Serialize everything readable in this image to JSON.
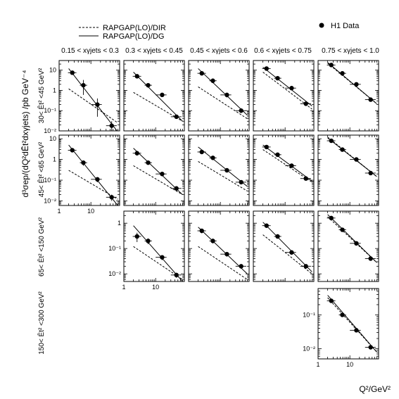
{
  "legend": {
    "lo_dir": "RAPGAP(LO)/DIR",
    "lo_dg": "RAPGAP(LO)/DG",
    "data": "H1 Data"
  },
  "y_title": "d³σep/(dQ²dĒt²dxγjets)  /pb GeV⁻⁴",
  "x_title": "Q²/GeV²",
  "columns": [
    "0.15 < xγjets < 0.3",
    "0.3 < xγjets < 0.45",
    "0.45 < xγjets < 0.6",
    "0.6 < xγjets < 0.75",
    "0.75 < xγjets < 1.0"
  ],
  "rows": [
    "30< Ēt² <45 GeV²",
    "45< Ēt² <65 GeV²",
    "65< Ēt² <150 GeV²",
    "150< Ēt² <300 GeV²"
  ],
  "chart_data": {
    "type": "scatter",
    "x_scale": "log",
    "y_scale": "log",
    "xlabel": "Q²/GeV²",
    "ylabel": "d³σep/(dQ²dĒt²dxγjets) /pb GeV⁻⁴",
    "series_names": [
      "H1 Data",
      "RAPGAP(LO)/DG",
      "RAPGAP(LO)/DIR"
    ],
    "panels": [
      {
        "row": 0,
        "col": 0,
        "ylim": [
          0.01,
          30
        ],
        "yticks": [
          {
            "v": 10,
            "l": "10"
          },
          {
            "v": 1,
            "l": "1"
          },
          {
            "v": 0.1,
            "l": "10⁻¹"
          },
          {
            "v": 0.01,
            "l": "10⁻²"
          }
        ],
        "xticks": [],
        "points": [
          {
            "x": 2.6,
            "y": 7.5,
            "xlo": 1.9,
            "xhi": 3.5,
            "ylo": 6,
            "yhi": 9
          },
          {
            "x": 5.8,
            "y": 1.8,
            "xlo": 4.5,
            "xhi": 7.6,
            "ylo": 0.6,
            "yhi": 3.3
          },
          {
            "x": 16,
            "y": 0.2,
            "xlo": 10,
            "xhi": 22,
            "ylo": 0.05,
            "yhi": 0.4
          },
          {
            "x": 45,
            "y": 0.018,
            "xlo": 30,
            "xhi": 65,
            "ylo": 0.009,
            "yhi": 0.03
          }
        ],
        "dg": [
          [
            2,
            12
          ],
          [
            70,
            0.009
          ]
        ],
        "dir": [
          [
            2,
            1.2
          ],
          [
            70,
            0.025
          ]
        ]
      },
      {
        "row": 0,
        "col": 1,
        "ylim": [
          0.01,
          30
        ],
        "yticks": [],
        "xticks": [],
        "points": [
          {
            "x": 2.6,
            "y": 5,
            "xlo": 1.9,
            "xhi": 3.5,
            "ylo": 4,
            "yhi": 6
          },
          {
            "x": 5.8,
            "y": 1.8,
            "xlo": 4.5,
            "xhi": 7.6,
            "ylo": 1.4,
            "yhi": 2.2
          },
          {
            "x": 16,
            "y": 0.6,
            "xlo": 10,
            "xhi": 22,
            "ylo": 0.5,
            "yhi": 0.7
          },
          {
            "x": 45,
            "y": 0.05,
            "xlo": 30,
            "xhi": 65,
            "ylo": 0.04,
            "yhi": 0.06
          }
        ],
        "dg": [
          [
            2,
            8
          ],
          [
            70,
            0.03
          ]
        ],
        "dir": [
          [
            2,
            0.8
          ],
          [
            70,
            0.03
          ]
        ]
      },
      {
        "row": 0,
        "col": 2,
        "ylim": [
          0.01,
          30
        ],
        "yticks": [],
        "xticks": [],
        "points": [
          {
            "x": 2.6,
            "y": 7,
            "xlo": 1.9,
            "xhi": 3.5,
            "ylo": 5.5,
            "yhi": 8.5
          },
          {
            "x": 5.8,
            "y": 3,
            "xlo": 4.5,
            "xhi": 7.6,
            "ylo": 2.3,
            "yhi": 3.8
          },
          {
            "x": 16,
            "y": 0.6,
            "xlo": 10,
            "xhi": 22,
            "ylo": 0.45,
            "yhi": 0.75
          },
          {
            "x": 45,
            "y": 0.1,
            "xlo": 30,
            "xhi": 65,
            "ylo": 0.08,
            "yhi": 0.12
          }
        ],
        "dg": [
          [
            2,
            12
          ],
          [
            70,
            0.06
          ]
        ],
        "dir": [
          [
            2,
            1.5
          ],
          [
            70,
            0.04
          ]
        ]
      },
      {
        "row": 0,
        "col": 3,
        "ylim": [
          0.01,
          30
        ],
        "yticks": [],
        "xticks": [],
        "points": [
          {
            "x": 2.6,
            "y": 12,
            "xlo": 1.9,
            "xhi": 3.5,
            "ylo": 10,
            "yhi": 14
          },
          {
            "x": 5.8,
            "y": 4,
            "xlo": 4.5,
            "xhi": 7.6,
            "ylo": 3.2,
            "yhi": 4.8
          },
          {
            "x": 16,
            "y": 1.3,
            "xlo": 10,
            "xhi": 22,
            "ylo": 1.05,
            "yhi": 1.55
          },
          {
            "x": 45,
            "y": 0.22,
            "xlo": 30,
            "xhi": 65,
            "ylo": 0.17,
            "yhi": 0.27
          }
        ],
        "dg": [
          [
            2,
            14
          ],
          [
            70,
            0.17
          ]
        ],
        "dir": [
          [
            2,
            8
          ],
          [
            70,
            0.12
          ]
        ]
      },
      {
        "row": 0,
        "col": 4,
        "ylim": [
          0.01,
          30
        ],
        "yticks": [],
        "xticks": [],
        "points": [
          {
            "x": 2.6,
            "y": 18,
            "xlo": 1.9,
            "xhi": 3.5,
            "ylo": 15,
            "yhi": 21
          },
          {
            "x": 5.8,
            "y": 7,
            "xlo": 4.5,
            "xhi": 7.6,
            "ylo": 6,
            "yhi": 8
          },
          {
            "x": 16,
            "y": 2,
            "xlo": 10,
            "xhi": 22,
            "ylo": 1.7,
            "yhi": 2.3
          },
          {
            "x": 45,
            "y": 0.35,
            "xlo": 30,
            "xhi": 65,
            "ylo": 0.3,
            "yhi": 0.4
          }
        ],
        "dg": [
          [
            2,
            24
          ],
          [
            70,
            0.22
          ]
        ],
        "dir": [
          [
            2,
            22
          ],
          [
            70,
            0.22
          ]
        ]
      },
      {
        "row": 1,
        "col": 0,
        "ylim": [
          0.006,
          15
        ],
        "yticks": [
          {
            "v": 10,
            "l": "10"
          },
          {
            "v": 1,
            "l": "1"
          },
          {
            "v": 0.1,
            "l": "10⁻¹"
          },
          {
            "v": 0.01,
            "l": "10⁻²"
          }
        ],
        "xticks": [
          {
            "v": 1,
            "l": "1"
          },
          {
            "v": 10,
            "l": "10"
          }
        ],
        "points": [
          {
            "x": 2.6,
            "y": 2.8,
            "xlo": 1.9,
            "xhi": 3.5,
            "ylo": 2.2,
            "yhi": 3.4
          },
          {
            "x": 5.8,
            "y": 0.7,
            "xlo": 4.5,
            "xhi": 7.6,
            "ylo": 0.5,
            "yhi": 0.9
          },
          {
            "x": 16,
            "y": 0.11,
            "xlo": 10,
            "xhi": 22,
            "ylo": 0.08,
            "yhi": 0.14
          },
          {
            "x": 45,
            "y": 0.015,
            "xlo": 30,
            "xhi": 65,
            "ylo": 0.01,
            "yhi": 0.02
          }
        ],
        "dg": [
          [
            2,
            5
          ],
          [
            70,
            0.006
          ]
        ],
        "dir": [
          [
            2,
            0.3
          ],
          [
            70,
            0.012
          ]
        ]
      },
      {
        "row": 1,
        "col": 1,
        "ylim": [
          0.006,
          15
        ],
        "yticks": [],
        "xticks": [],
        "points": [
          {
            "x": 2.6,
            "y": 2,
            "xlo": 1.9,
            "xhi": 3.5,
            "ylo": 1.6,
            "yhi": 2.4
          },
          {
            "x": 5.8,
            "y": 0.7,
            "xlo": 4.5,
            "xhi": 7.6,
            "ylo": 0.55,
            "yhi": 0.85
          },
          {
            "x": 16,
            "y": 0.2,
            "xlo": 10,
            "xhi": 22,
            "ylo": 0.16,
            "yhi": 0.24
          },
          {
            "x": 45,
            "y": 0.04,
            "xlo": 30,
            "xhi": 65,
            "ylo": 0.03,
            "yhi": 0.05
          }
        ],
        "dg": [
          [
            2,
            3.5
          ],
          [
            70,
            0.02
          ]
        ],
        "dir": [
          [
            2,
            0.5
          ],
          [
            70,
            0.02
          ]
        ]
      },
      {
        "row": 1,
        "col": 2,
        "ylim": [
          0.006,
          15
        ],
        "yticks": [],
        "xticks": [],
        "points": [
          {
            "x": 2.6,
            "y": 2.3,
            "xlo": 1.9,
            "xhi": 3.5,
            "ylo": 1.8,
            "yhi": 2.8
          },
          {
            "x": 5.8,
            "y": 1.2,
            "xlo": 4.5,
            "xhi": 7.6,
            "ylo": 0.95,
            "yhi": 1.45
          },
          {
            "x": 16,
            "y": 0.3,
            "xlo": 10,
            "xhi": 22,
            "ylo": 0.24,
            "yhi": 0.36
          },
          {
            "x": 45,
            "y": 0.08,
            "xlo": 30,
            "xhi": 65,
            "ylo": 0.065,
            "yhi": 0.095
          }
        ],
        "dg": [
          [
            2,
            4
          ],
          [
            70,
            0.05
          ]
        ],
        "dir": [
          [
            2,
            0.8
          ],
          [
            70,
            0.03
          ]
        ]
      },
      {
        "row": 1,
        "col": 3,
        "ylim": [
          0.006,
          15
        ],
        "yticks": [],
        "xticks": [],
        "points": [
          {
            "x": 2.6,
            "y": 4,
            "xlo": 1.9,
            "xhi": 3.5,
            "ylo": 3.3,
            "yhi": 4.7
          },
          {
            "x": 5.8,
            "y": 1.7,
            "xlo": 4.5,
            "xhi": 7.6,
            "ylo": 1.4,
            "yhi": 2
          },
          {
            "x": 16,
            "y": 0.5,
            "xlo": 10,
            "xhi": 22,
            "ylo": 0.42,
            "yhi": 0.58
          },
          {
            "x": 45,
            "y": 0.12,
            "xlo": 30,
            "xhi": 65,
            "ylo": 0.1,
            "yhi": 0.14
          }
        ],
        "dg": [
          [
            2,
            5
          ],
          [
            70,
            0.09
          ]
        ],
        "dir": [
          [
            2,
            3
          ],
          [
            70,
            0.08
          ]
        ]
      },
      {
        "row": 1,
        "col": 4,
        "ylim": [
          0.006,
          15
        ],
        "yticks": [],
        "xticks": [],
        "points": [
          {
            "x": 2.6,
            "y": 8,
            "xlo": 1.9,
            "xhi": 3.5,
            "ylo": 6.8,
            "yhi": 9.2
          },
          {
            "x": 5.8,
            "y": 3,
            "xlo": 4.5,
            "xhi": 7.6,
            "ylo": 2.6,
            "yhi": 3.4
          },
          {
            "x": 16,
            "y": 1,
            "xlo": 10,
            "xhi": 22,
            "ylo": 0.87,
            "yhi": 1.13
          },
          {
            "x": 45,
            "y": 0.22,
            "xlo": 30,
            "xhi": 65,
            "ylo": 0.19,
            "yhi": 0.25
          }
        ],
        "dg": [
          [
            2,
            11
          ],
          [
            70,
            0.15
          ]
        ],
        "dir": [
          [
            2,
            12
          ],
          [
            70,
            0.15
          ]
        ]
      },
      {
        "row": 2,
        "col": 1,
        "ylim": [
          0.005,
          3
        ],
        "yticks": [
          {
            "v": 1,
            "l": "1"
          },
          {
            "v": 0.1,
            "l": "10⁻¹"
          },
          {
            "v": 0.01,
            "l": "10⁻²"
          }
        ],
        "xticks": [
          {
            "v": 1,
            "l": "1"
          },
          {
            "v": 10,
            "l": "10"
          }
        ],
        "points": [
          {
            "x": 2.6,
            "y": 0.3,
            "xlo": 1.9,
            "xhi": 3.5,
            "ylo": 0.18,
            "yhi": 0.42
          },
          {
            "x": 5.8,
            "y": 0.2,
            "xlo": 4.5,
            "xhi": 7.6,
            "ylo": 0.15,
            "yhi": 0.25
          },
          {
            "x": 16,
            "y": 0.045,
            "xlo": 10,
            "xhi": 22,
            "ylo": 0.035,
            "yhi": 0.055
          },
          {
            "x": 45,
            "y": 0.009,
            "xlo": 30,
            "xhi": 65,
            "ylo": 0.007,
            "yhi": 0.011
          }
        ],
        "dg": [
          [
            2,
            0.8
          ],
          [
            70,
            0.005
          ]
        ],
        "dir": [
          [
            2,
            0.12
          ],
          [
            70,
            0.006
          ]
        ]
      },
      {
        "row": 2,
        "col": 2,
        "ylim": [
          0.005,
          3
        ],
        "yticks": [],
        "xticks": [],
        "points": [
          {
            "x": 2.6,
            "y": 0.5,
            "xlo": 1.9,
            "xhi": 3.5,
            "ylo": 0.4,
            "yhi": 0.6
          },
          {
            "x": 5.8,
            "y": 0.2,
            "xlo": 4.5,
            "xhi": 7.6,
            "ylo": 0.16,
            "yhi": 0.24
          },
          {
            "x": 16,
            "y": 0.06,
            "xlo": 10,
            "xhi": 22,
            "ylo": 0.048,
            "yhi": 0.072
          },
          {
            "x": 45,
            "y": 0.02,
            "xlo": 30,
            "xhi": 65,
            "ylo": 0.016,
            "yhi": 0.024
          }
        ],
        "dg": [
          [
            2,
            0.7
          ],
          [
            70,
            0.01
          ]
        ],
        "dir": [
          [
            2,
            0.12
          ],
          [
            70,
            0.006
          ]
        ]
      },
      {
        "row": 2,
        "col": 3,
        "ylim": [
          0.005,
          3
        ],
        "yticks": [],
        "xticks": [],
        "points": [
          {
            "x": 2.6,
            "y": 0.8,
            "xlo": 1.9,
            "xhi": 3.5,
            "ylo": 0.65,
            "yhi": 0.95
          },
          {
            "x": 5.8,
            "y": 0.3,
            "xlo": 4.5,
            "xhi": 7.6,
            "ylo": 0.25,
            "yhi": 0.35
          },
          {
            "x": 16,
            "y": 0.07,
            "xlo": 10,
            "xhi": 22,
            "ylo": 0.058,
            "yhi": 0.082
          },
          {
            "x": 45,
            "y": 0.02,
            "xlo": 30,
            "xhi": 65,
            "ylo": 0.016,
            "yhi": 0.024
          }
        ],
        "dg": [
          [
            2,
            1.1
          ],
          [
            70,
            0.012
          ]
        ],
        "dir": [
          [
            2,
            0.35
          ],
          [
            70,
            0.01
          ]
        ]
      },
      {
        "row": 2,
        "col": 4,
        "ylim": [
          0.005,
          3
        ],
        "yticks": [],
        "xticks": [],
        "points": [
          {
            "x": 2.6,
            "y": 1.6,
            "xlo": 1.9,
            "xhi": 3.5,
            "ylo": 1.35,
            "yhi": 1.85
          },
          {
            "x": 5.8,
            "y": 0.55,
            "xlo": 4.5,
            "xhi": 7.6,
            "ylo": 0.47,
            "yhi": 0.63
          },
          {
            "x": 16,
            "y": 0.16,
            "xlo": 10,
            "xhi": 22,
            "ylo": 0.14,
            "yhi": 0.18
          },
          {
            "x": 45,
            "y": 0.04,
            "xlo": 30,
            "xhi": 65,
            "ylo": 0.035,
            "yhi": 0.045
          }
        ],
        "dg": [
          [
            2,
            2.2
          ],
          [
            70,
            0.028
          ]
        ],
        "dir": [
          [
            2,
            1.8
          ],
          [
            70,
            0.028
          ]
        ]
      },
      {
        "row": 3,
        "col": 4,
        "ylim": [
          0.005,
          0.6
        ],
        "yticks": [
          {
            "v": 0.1,
            "l": "10⁻¹"
          },
          {
            "v": 0.01,
            "l": "10⁻²"
          }
        ],
        "xticks": [
          {
            "v": 1,
            "l": "1"
          },
          {
            "v": 10,
            "l": "10"
          }
        ],
        "points": [
          {
            "x": 2.6,
            "y": 0.26,
            "xlo": 1.9,
            "xhi": 3.5,
            "ylo": 0.23,
            "yhi": 0.29
          },
          {
            "x": 5.8,
            "y": 0.1,
            "xlo": 4.5,
            "xhi": 7.6,
            "ylo": 0.088,
            "yhi": 0.112
          },
          {
            "x": 16,
            "y": 0.035,
            "xlo": 10,
            "xhi": 22,
            "ylo": 0.031,
            "yhi": 0.039
          },
          {
            "x": 45,
            "y": 0.011,
            "xlo": 30,
            "xhi": 65,
            "ylo": 0.0098,
            "yhi": 0.0122
          }
        ],
        "dg": [
          [
            2,
            0.38
          ],
          [
            70,
            0.008
          ]
        ],
        "dir": [
          [
            2,
            0.32
          ],
          [
            70,
            0.008
          ]
        ]
      }
    ]
  }
}
